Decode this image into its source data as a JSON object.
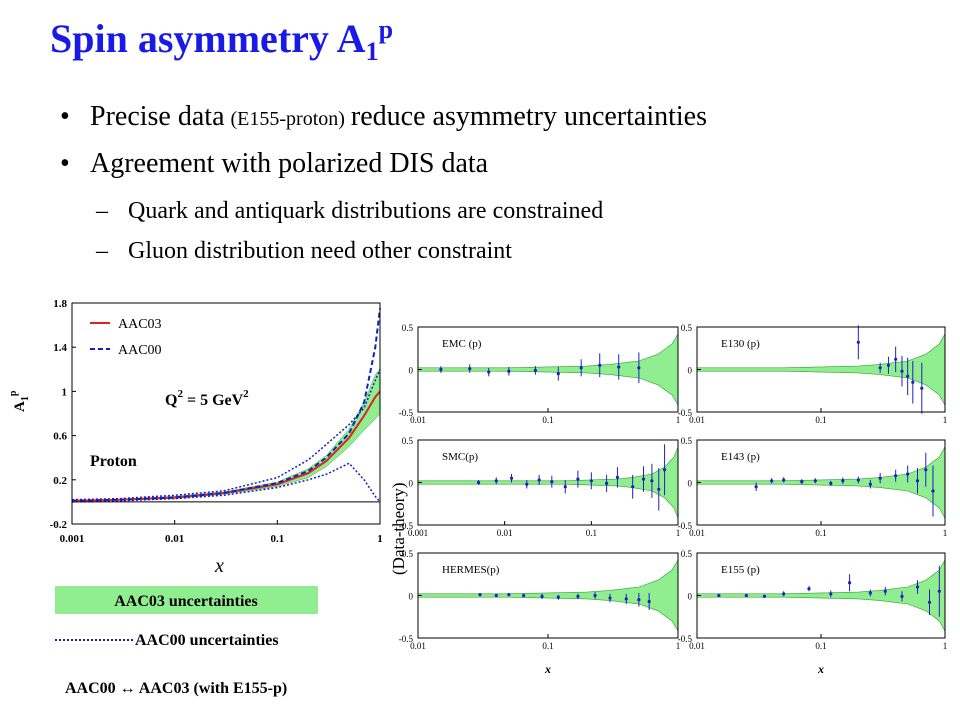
{
  "title": "Spin asymmetry A",
  "title_sub": "1",
  "title_sup": "p",
  "bullets": [
    [
      "Precise data",
      "(E155-proton)",
      "reduce asymmetry uncertainties"
    ],
    [
      "Agreement with polarized DIS data"
    ]
  ],
  "subbullets": [
    "Quark and antiquark distributions are constrained",
    "Gluon distribution need other constraint"
  ],
  "panels_ylabel": "(Data-theory)",
  "footer": "AAC00 ↔ AAC03 (with E155-p)",
  "chart_data": [
    {
      "type": "line",
      "xscale": "log",
      "xlim": [
        0.001,
        1
      ],
      "xticks": [
        0.001,
        0.01,
        0.1,
        1
      ],
      "ylim": [
        -0.2,
        1.8
      ],
      "yticks": [
        -0.2,
        0.2,
        0.6,
        1,
        1.4,
        1.8
      ],
      "xlabel": "x",
      "ylabel": "A",
      "ylabel_sub": "1",
      "ylabel_sup": "p",
      "annotation": [
        "Q",
        "2",
        "= 5 GeV",
        "2"
      ],
      "label": "Proton",
      "x": [
        0.001,
        0.003,
        0.01,
        0.03,
        0.1,
        0.2,
        0.3,
        0.5,
        0.7,
        0.9,
        1
      ],
      "series": [
        {
          "name": "AAC03",
          "color": "#e02020",
          "style": "solid",
          "values": [
            0.01,
            0.02,
            0.04,
            0.08,
            0.16,
            0.26,
            0.37,
            0.58,
            0.78,
            0.95,
            1.0
          ]
        },
        {
          "name": "AAC00",
          "color": "#1020c0",
          "style": "dashed",
          "values": [
            0.01,
            0.02,
            0.04,
            0.08,
            0.17,
            0.28,
            0.4,
            0.62,
            0.9,
            1.4,
            1.75
          ]
        }
      ],
      "bands": [
        {
          "name": "AAC03 uncertainties",
          "color": "#90ee90",
          "style": "fill",
          "lower": [
            0.005,
            0.015,
            0.03,
            0.07,
            0.14,
            0.22,
            0.32,
            0.5,
            0.65,
            0.75,
            0.8
          ],
          "upper": [
            0.015,
            0.025,
            0.05,
            0.09,
            0.18,
            0.3,
            0.42,
            0.66,
            0.9,
            1.15,
            1.2
          ]
        },
        {
          "name": "AAC00 uncertainties",
          "color": "#1020c0",
          "style": "dotted",
          "lower": [
            0,
            0.01,
            0.03,
            0.06,
            0.13,
            0.2,
            0.25,
            0.35,
            0.2,
            0.05,
            0
          ],
          "upper": [
            0.02,
            0.03,
            0.06,
            0.1,
            0.22,
            0.38,
            0.52,
            0.7,
            0.85,
            1.1,
            1.2
          ]
        }
      ]
    },
    {
      "type": "scatter",
      "title": "EMC (p)",
      "xscale": "log",
      "xlim": [
        0.01,
        1
      ],
      "xticks": [
        0.01,
        0.1,
        1
      ],
      "ylim": [
        -0.5,
        0.5
      ],
      "yticks": [
        -0.5,
        0,
        0.5
      ],
      "color": "#2020c0",
      "x": [
        0.015,
        0.025,
        0.035,
        0.05,
        0.08,
        0.12,
        0.18,
        0.25,
        0.35,
        0.5
      ],
      "values": [
        0,
        0.01,
        -0.03,
        -0.02,
        -0.01,
        -0.05,
        0.02,
        0.05,
        0.03,
        0.02
      ],
      "errors": [
        0.04,
        0.05,
        0.05,
        0.05,
        0.05,
        0.08,
        0.1,
        0.14,
        0.15,
        0.18
      ],
      "band": {
        "color": "#90ee90",
        "x": [
          0.01,
          0.05,
          0.1,
          0.2,
          0.3,
          0.5,
          0.7,
          0.9,
          1
        ],
        "upper": [
          0.02,
          0.02,
          0.03,
          0.04,
          0.06,
          0.1,
          0.18,
          0.3,
          0.42
        ],
        "lower": [
          -0.02,
          -0.02,
          -0.03,
          -0.04,
          -0.06,
          -0.1,
          -0.18,
          -0.3,
          -0.42
        ]
      }
    },
    {
      "type": "scatter",
      "title": "E130 (p)",
      "xscale": "log",
      "xlim": [
        0.01,
        1
      ],
      "xticks": [
        0.01,
        0.1,
        1
      ],
      "ylim": [
        -0.5,
        0.5
      ],
      "yticks": [
        -0.5,
        0,
        0.5
      ],
      "color": "#2020c0",
      "x": [
        0.2,
        0.3,
        0.35,
        0.4,
        0.45,
        0.5,
        0.55,
        0.65
      ],
      "values": [
        0.32,
        0.02,
        0.05,
        0.12,
        -0.02,
        -0.08,
        -0.15,
        -0.22
      ],
      "errors": [
        0.2,
        0.06,
        0.1,
        0.15,
        0.18,
        0.22,
        0.25,
        0.3
      ],
      "band": {
        "color": "#90ee90",
        "x": [
          0.01,
          0.05,
          0.1,
          0.2,
          0.3,
          0.5,
          0.7,
          0.9,
          1
        ],
        "upper": [
          0.02,
          0.02,
          0.03,
          0.04,
          0.06,
          0.1,
          0.18,
          0.3,
          0.42
        ],
        "lower": [
          -0.02,
          -0.02,
          -0.03,
          -0.04,
          -0.06,
          -0.1,
          -0.18,
          -0.3,
          -0.42
        ]
      }
    },
    {
      "type": "scatter",
      "title": "SMC(p)",
      "xscale": "log",
      "xlim": [
        0.001,
        1
      ],
      "xticks": [
        0.001,
        0.01,
        0.1,
        1
      ],
      "ylim": [
        -0.5,
        0.5
      ],
      "yticks": [
        -0.5,
        0,
        0.5
      ],
      "color": "#2020c0",
      "x": [
        0.005,
        0.008,
        0.012,
        0.018,
        0.025,
        0.035,
        0.05,
        0.07,
        0.1,
        0.15,
        0.2,
        0.3,
        0.4,
        0.5,
        0.6,
        0.7
      ],
      "values": [
        0,
        0.02,
        0.05,
        -0.02,
        0.03,
        0.01,
        -0.05,
        0.04,
        0.02,
        -0.01,
        0.06,
        -0.05,
        0.04,
        0.02,
        -0.08,
        0.15
      ],
      "errors": [
        0.03,
        0.04,
        0.05,
        0.05,
        0.06,
        0.07,
        0.08,
        0.1,
        0.1,
        0.1,
        0.12,
        0.14,
        0.15,
        0.2,
        0.25,
        0.3
      ],
      "band": {
        "color": "#90ee90",
        "x": [
          0.001,
          0.01,
          0.05,
          0.1,
          0.2,
          0.3,
          0.5,
          0.7,
          0.9,
          1
        ],
        "upper": [
          0.02,
          0.02,
          0.02,
          0.03,
          0.04,
          0.06,
          0.1,
          0.18,
          0.3,
          0.42
        ],
        "lower": [
          -0.02,
          -0.02,
          -0.02,
          -0.03,
          -0.04,
          -0.06,
          -0.1,
          -0.18,
          -0.3,
          -0.42
        ]
      }
    },
    {
      "type": "scatter",
      "title": "E143 (p)",
      "xscale": "log",
      "xlim": [
        0.01,
        1
      ],
      "xticks": [
        0.01,
        0.1,
        1
      ],
      "ylim": [
        -0.5,
        0.5
      ],
      "yticks": [
        -0.5,
        0,
        0.5
      ],
      "color": "#2020c0",
      "x": [
        0.03,
        0.04,
        0.05,
        0.07,
        0.09,
        0.12,
        0.15,
        0.2,
        0.25,
        0.3,
        0.4,
        0.5,
        0.6,
        0.7,
        0.8
      ],
      "values": [
        -0.05,
        0.02,
        0.03,
        0.01,
        0.02,
        -0.01,
        0.02,
        0.03,
        -0.02,
        0.05,
        0.08,
        0.1,
        0.02,
        0.15,
        -0.1
      ],
      "errors": [
        0.05,
        0.03,
        0.03,
        0.03,
        0.03,
        0.03,
        0.04,
        0.04,
        0.05,
        0.06,
        0.07,
        0.1,
        0.15,
        0.2,
        0.3
      ],
      "band": {
        "color": "#90ee90",
        "x": [
          0.01,
          0.05,
          0.1,
          0.2,
          0.3,
          0.5,
          0.7,
          0.9,
          1
        ],
        "upper": [
          0.02,
          0.02,
          0.03,
          0.04,
          0.06,
          0.1,
          0.18,
          0.3,
          0.42
        ],
        "lower": [
          -0.02,
          -0.02,
          -0.03,
          -0.04,
          -0.06,
          -0.1,
          -0.18,
          -0.3,
          -0.42
        ]
      }
    },
    {
      "type": "scatter",
      "title": "HERMES(p)",
      "xscale": "log",
      "xlim": [
        0.01,
        1
      ],
      "xticks": [
        0.01,
        0.1,
        1
      ],
      "ylim": [
        -0.5,
        0.5
      ],
      "yticks": [
        -0.5,
        0,
        0.5
      ],
      "xlabel": "x",
      "color": "#2020c0",
      "x": [
        0.03,
        0.04,
        0.05,
        0.065,
        0.09,
        0.12,
        0.17,
        0.23,
        0.3,
        0.4,
        0.5,
        0.6
      ],
      "values": [
        0.01,
        0,
        0.01,
        0,
        -0.01,
        -0.02,
        -0.01,
        0,
        -0.03,
        -0.04,
        -0.05,
        -0.07
      ],
      "errors": [
        0.02,
        0.02,
        0.02,
        0.02,
        0.03,
        0.03,
        0.03,
        0.04,
        0.05,
        0.06,
        0.08,
        0.1
      ],
      "band": {
        "color": "#90ee90",
        "x": [
          0.01,
          0.05,
          0.1,
          0.2,
          0.3,
          0.5,
          0.7,
          0.9,
          1
        ],
        "upper": [
          0.02,
          0.02,
          0.03,
          0.04,
          0.06,
          0.1,
          0.18,
          0.3,
          0.42
        ],
        "lower": [
          -0.02,
          -0.02,
          -0.03,
          -0.04,
          -0.06,
          -0.1,
          -0.18,
          -0.3,
          -0.42
        ]
      }
    },
    {
      "type": "scatter",
      "title": "E155 (p)",
      "xscale": "log",
      "xlim": [
        0.01,
        1
      ],
      "xticks": [
        0.01,
        0.1,
        1
      ],
      "ylim": [
        -0.5,
        0.5
      ],
      "yticks": [
        -0.5,
        0,
        0.5
      ],
      "xlabel": "x",
      "color": "#2020c0",
      "x": [
        0.015,
        0.025,
        0.035,
        0.05,
        0.08,
        0.12,
        0.17,
        0.25,
        0.33,
        0.45,
        0.6,
        0.75,
        0.9
      ],
      "values": [
        0,
        0,
        -0.01,
        0.02,
        0.08,
        0.02,
        0.15,
        0.03,
        0.05,
        -0.01,
        0.1,
        -0.08,
        0.05
      ],
      "errors": [
        0.02,
        0.02,
        0.02,
        0.03,
        0.03,
        0.04,
        0.1,
        0.04,
        0.05,
        0.06,
        0.08,
        0.15,
        0.3
      ],
      "band": {
        "color": "#90ee90",
        "x": [
          0.01,
          0.05,
          0.1,
          0.2,
          0.3,
          0.5,
          0.7,
          0.9,
          1
        ],
        "upper": [
          0.02,
          0.02,
          0.03,
          0.04,
          0.06,
          0.1,
          0.18,
          0.3,
          0.42
        ],
        "lower": [
          -0.02,
          -0.02,
          -0.03,
          -0.04,
          -0.06,
          -0.1,
          -0.18,
          -0.3,
          -0.42
        ]
      }
    }
  ]
}
